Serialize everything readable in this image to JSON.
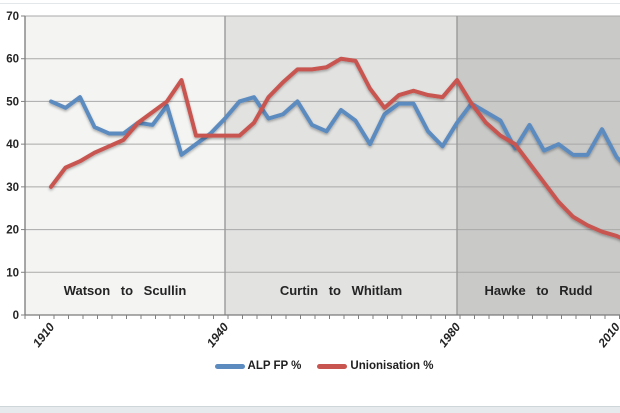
{
  "chart_data": {
    "type": "line",
    "title": "",
    "xlabel": "",
    "ylabel": "",
    "ylim": [
      0,
      70
    ],
    "y_ticks": [
      0,
      10,
      20,
      30,
      40,
      50,
      60,
      70
    ],
    "grid": true,
    "legend_position": "bottom-center",
    "x": [
      1910,
      1913,
      1914,
      1917,
      1919,
      1922,
      1925,
      1928,
      1929,
      1931,
      1934,
      1937,
      1940,
      1943,
      1946,
      1949,
      1951,
      1954,
      1955,
      1958,
      1961,
      1963,
      1966,
      1969,
      1972,
      1974,
      1975,
      1977,
      1980,
      1983,
      1984,
      1987,
      1990,
      1993,
      1996,
      1998,
      2001,
      2004,
      2007,
      2010,
      2013
    ],
    "x_note": "one point per federal election; final 2013 segment is clipped by the right edge of the frame",
    "x_tick_labels": [
      {
        "label": "1910",
        "index": 0
      },
      {
        "label": "1940",
        "index": 12
      },
      {
        "label": "1980",
        "index": 28
      },
      {
        "label": "2010",
        "index": 39
      }
    ],
    "series": [
      {
        "name": "ALP FP %",
        "color": "#5c8bc0",
        "values": [
          50,
          48.5,
          51,
          44,
          42.5,
          42.5,
          45,
          44.5,
          49,
          37.5,
          40,
          42.5,
          46,
          50,
          51,
          46,
          47,
          50,
          44.5,
          43,
          48,
          45.5,
          40,
          47,
          49.5,
          49.5,
          43,
          39.5,
          45,
          49.5,
          47.5,
          45.5,
          39,
          44.5,
          38.5,
          40,
          37.5,
          37.5,
          43.5,
          37,
          33.5
        ]
      },
      {
        "name": "Unionisation %",
        "color": "#c8554f",
        "values": [
          30,
          34.5,
          36,
          38,
          39.5,
          41,
          45,
          47.5,
          50,
          55,
          42,
          42,
          42,
          42,
          45,
          51,
          54.5,
          57.5,
          57.5,
          58,
          60,
          59.5,
          53,
          48.5,
          51.5,
          52.5,
          51.5,
          51,
          55,
          49.5,
          45,
          42,
          40,
          35.5,
          31,
          26.5,
          23,
          21,
          19.5,
          18.5,
          17
        ]
      }
    ],
    "regions": [
      {
        "label": "Watson to Scullin",
        "from_index": 0,
        "to_index": 12,
        "fill": "#f4f4f3"
      },
      {
        "label": "Curtin to Whitlam",
        "from_index": 12,
        "to_index": 28,
        "fill": "#e2e2e1"
      },
      {
        "label": "Hawke to Rudd",
        "from_index": 28,
        "to_index": 41,
        "fill": "#c9c9c8"
      }
    ],
    "colors": {
      "gridline": "#a9a9a8",
      "band_boundary": "#9a9a99",
      "axis": "#7a7a7a",
      "tick": "#808080",
      "text": "#242424"
    }
  },
  "legend": {
    "items": [
      {
        "label": "ALP FP %"
      },
      {
        "label": "Unionisation %"
      }
    ]
  }
}
